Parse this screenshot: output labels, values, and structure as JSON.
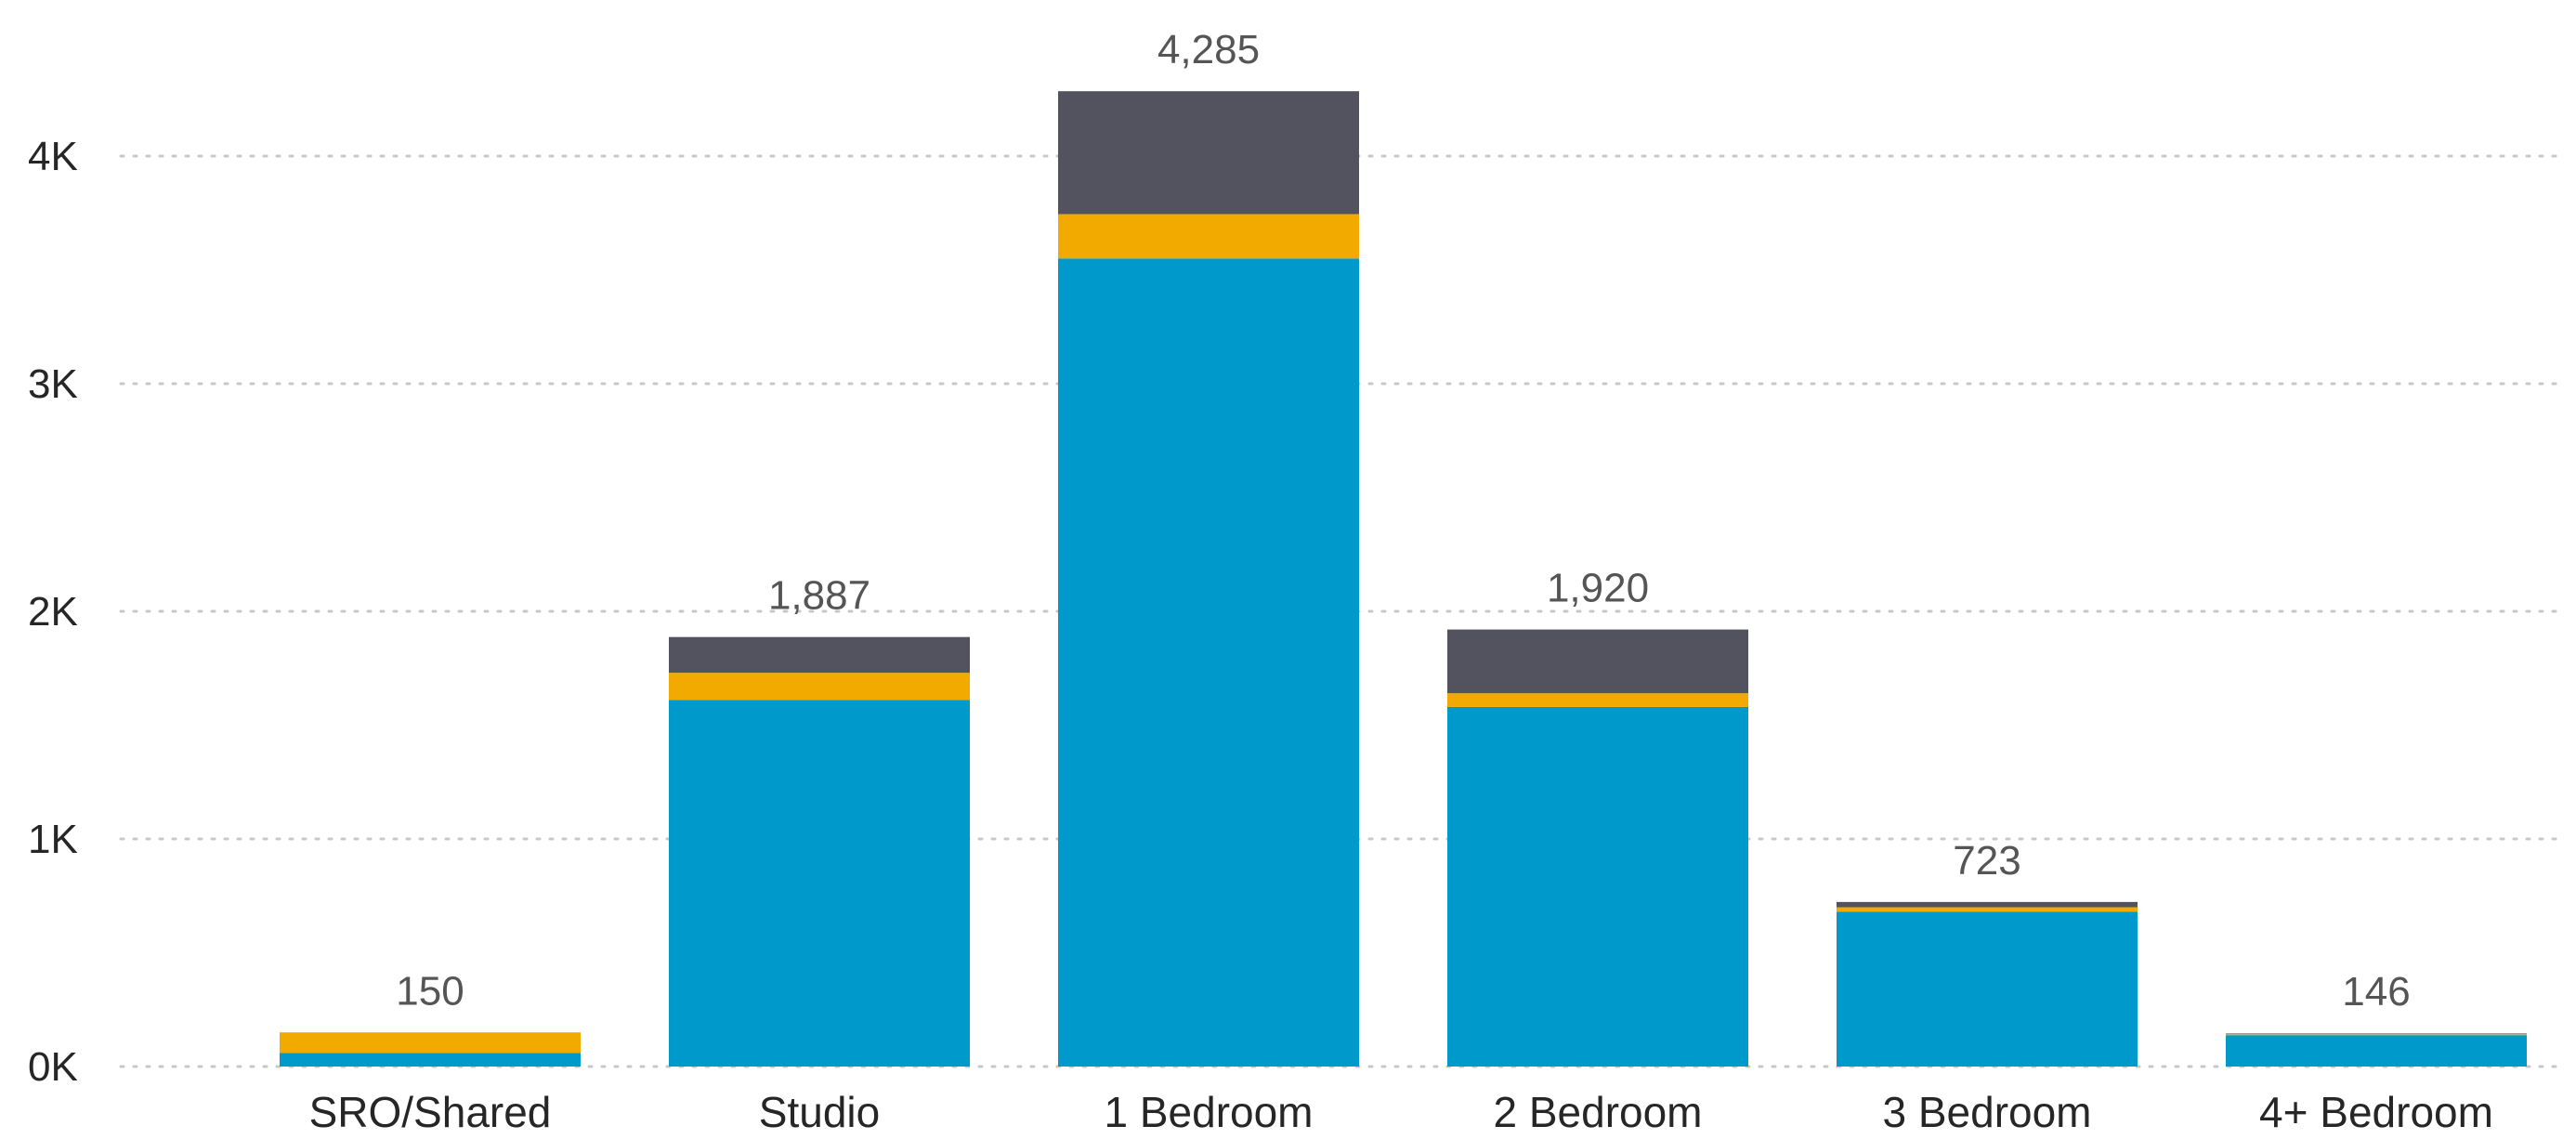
{
  "chart_data": {
    "type": "bar",
    "stacked": true,
    "title": "",
    "xlabel": "",
    "ylabel": "",
    "categories": [
      "SRO/Shared",
      "Studio",
      "1 Bedroom",
      "2 Bedroom",
      "3 Bedroom",
      "4+ Bedroom"
    ],
    "series": [
      {
        "color": "#0099cc",
        "values": [
          60,
          1610,
          3550,
          1580,
          680,
          138
        ]
      },
      {
        "color": "#f2a900",
        "values": [
          90,
          120,
          195,
          60,
          20,
          6
        ]
      },
      {
        "color": "#53535f",
        "values": [
          0,
          157,
          540,
          280,
          23,
          2
        ]
      }
    ],
    "totals": [
      "150",
      "1,887",
      "4,285",
      "1,920",
      "723",
      "146"
    ],
    "y_ticks": [
      {
        "value": 0,
        "label": "0K"
      },
      {
        "value": 1000,
        "label": "1K"
      },
      {
        "value": 2000,
        "label": "2K"
      },
      {
        "value": 3000,
        "label": "3K"
      },
      {
        "value": 4000,
        "label": "4K"
      }
    ],
    "ylim": [
      0,
      4400
    ],
    "grid": true,
    "legend": "none"
  }
}
